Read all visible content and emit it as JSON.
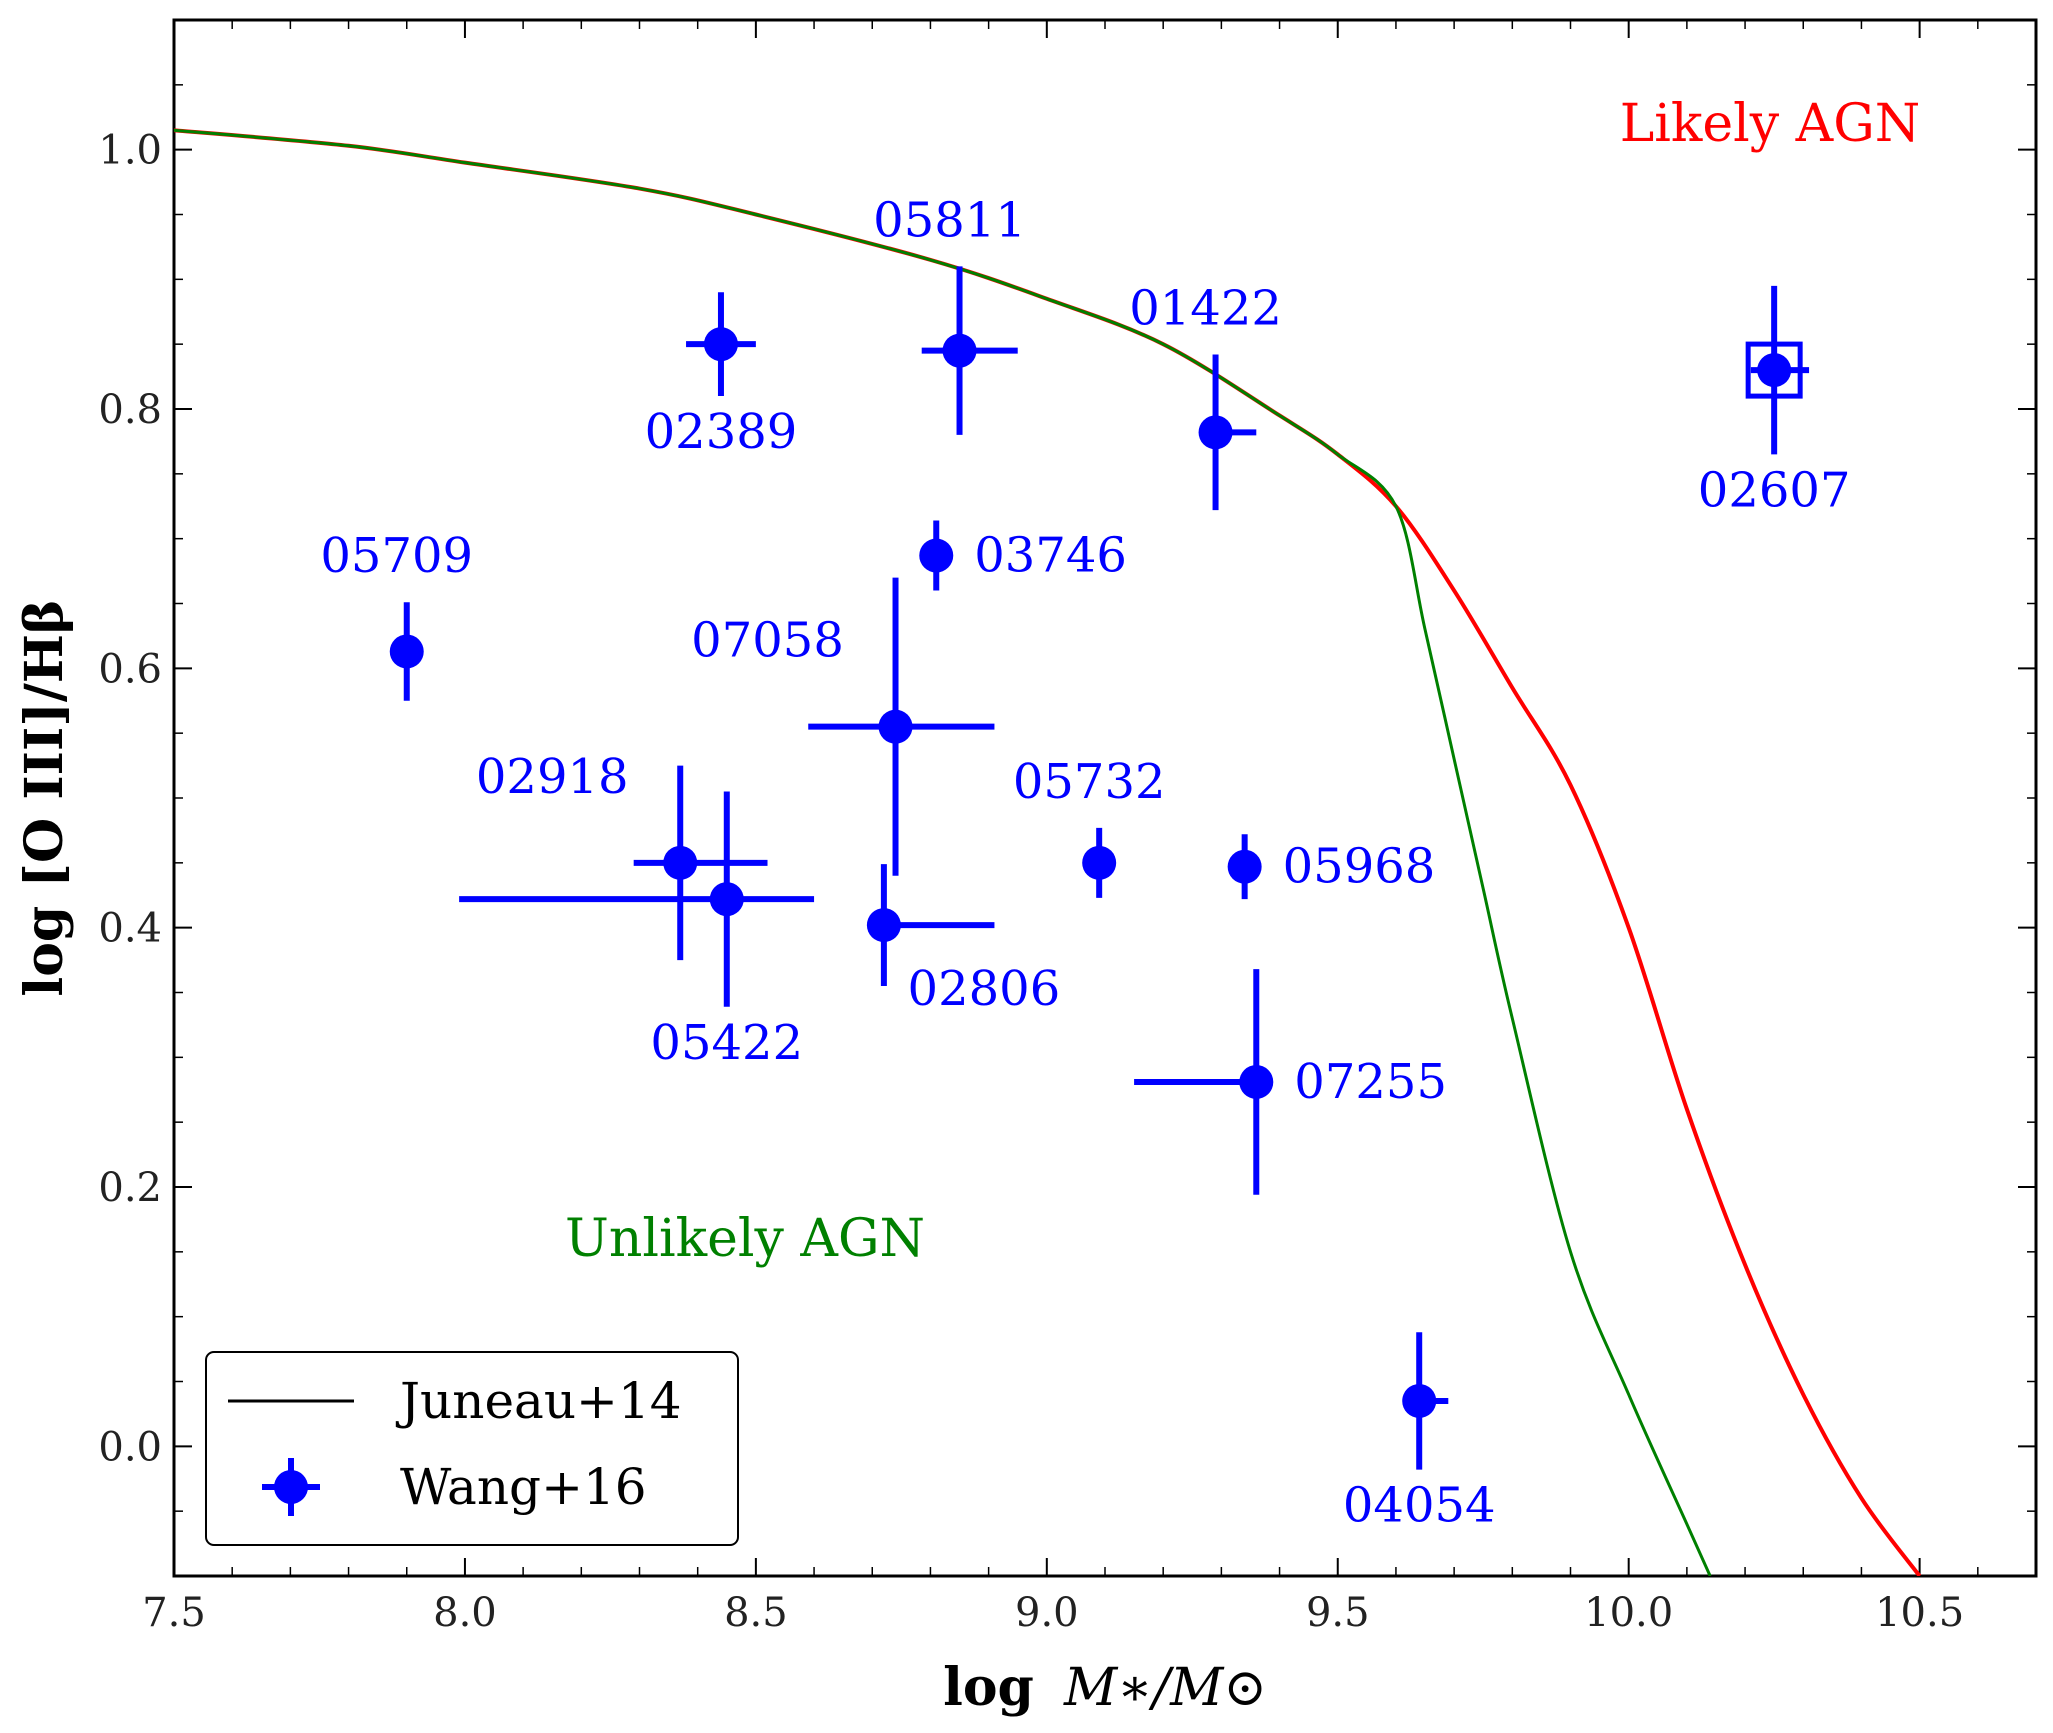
{
  "chart_data": {
    "type": "scatter",
    "xlabel_prefix": "log",
    "xlabel_var": "M∗/M⊙",
    "ylabel": "log [O III]/Hβ",
    "xlim": [
      7.5,
      10.7
    ],
    "ylim": [
      -0.1,
      1.1
    ],
    "xticks": [
      7.5,
      8.0,
      8.5,
      9.0,
      9.5,
      10.0,
      10.5
    ],
    "xtick_labels": [
      "7.5",
      "8.0",
      "8.5",
      "9.0",
      "9.5",
      "10.0",
      "10.5"
    ],
    "yticks": [
      0.0,
      0.2,
      0.4,
      0.6,
      0.8,
      1.0
    ],
    "ytick_labels": [
      "0.0",
      "0.2",
      "0.4",
      "0.6",
      "0.8",
      "1.0"
    ],
    "region_labels": {
      "agn": {
        "text": "Likely AGN",
        "color": "#ff0000"
      },
      "non_agn": {
        "text": "Unlikely AGN",
        "color": "#008000"
      }
    },
    "curves": {
      "name": "Juneau+14",
      "upper": {
        "color": "#ff0000",
        "x": [
          7.5,
          7.8,
          8.0,
          8.3,
          8.5,
          8.8,
          9.0,
          9.2,
          9.4,
          9.5,
          9.6,
          9.7,
          9.8,
          9.9,
          10.0,
          10.1,
          10.2,
          10.3,
          10.4,
          10.5
        ],
        "y": [
          1.015,
          1.003,
          0.99,
          0.97,
          0.95,
          0.915,
          0.885,
          0.85,
          0.795,
          0.765,
          0.725,
          0.66,
          0.585,
          0.51,
          0.4,
          0.26,
          0.14,
          0.04,
          -0.04,
          -0.1
        ]
      },
      "lower": {
        "color": "#008000",
        "x": [
          9.6,
          9.65,
          9.7,
          9.75,
          9.8,
          9.9,
          10.0,
          10.1,
          10.14
        ],
        "y": [
          0.725,
          0.63,
          0.53,
          0.43,
          0.33,
          0.15,
          0.04,
          -0.06,
          -0.1
        ]
      }
    },
    "series": [
      {
        "name": "Wang+16",
        "color": "#0000ff",
        "points": [
          {
            "id": "05709",
            "x": 7.9,
            "y": 0.613,
            "xerr": [
              0.0,
              0.0
            ],
            "yerr": [
              0.038,
              0.038
            ],
            "label_pos": "above"
          },
          {
            "id": "02389",
            "x": 8.44,
            "y": 0.85,
            "xerr": [
              0.06,
              0.06
            ],
            "yerr": [
              0.04,
              0.04
            ],
            "label_pos": "below"
          },
          {
            "id": "05811",
            "x": 8.85,
            "y": 0.845,
            "xerr": [
              0.065,
              0.1
            ],
            "yerr": [
              0.065,
              0.065
            ],
            "label_pos": "above"
          },
          {
            "id": "01422",
            "x": 9.29,
            "y": 0.782,
            "xerr": [
              0.0,
              0.07
            ],
            "yerr": [
              0.06,
              0.06
            ],
            "label_pos": "above"
          },
          {
            "id": "03746",
            "x": 8.81,
            "y": 0.687,
            "xerr": [
              0.0,
              0.0
            ],
            "yerr": [
              0.027,
              0.027
            ],
            "label_pos": "right"
          },
          {
            "id": "07058",
            "x": 8.74,
            "y": 0.555,
            "xerr": [
              0.15,
              0.17
            ],
            "yerr": [
              0.115,
              0.115
            ],
            "label_pos": "above-left"
          },
          {
            "id": "02918",
            "x": 8.37,
            "y": 0.45,
            "xerr": [
              0.08,
              0.15
            ],
            "yerr": [
              0.075,
              0.075
            ],
            "label_pos": "above-left"
          },
          {
            "id": "05422",
            "x": 8.45,
            "y": 0.422,
            "xerr": [
              0.46,
              0.15
            ],
            "yerr": [
              0.083,
              0.083
            ],
            "label_pos": "below"
          },
          {
            "id": "02806",
            "x": 8.72,
            "y": 0.402,
            "xerr": [
              0.0,
              0.19
            ],
            "yerr": [
              0.047,
              0.047
            ],
            "label_pos": "below-right"
          },
          {
            "id": "05732",
            "x": 9.09,
            "y": 0.45,
            "xerr": [
              0.0,
              0.0
            ],
            "yerr": [
              0.027,
              0.027
            ],
            "label_pos": "above"
          },
          {
            "id": "05968",
            "x": 9.34,
            "y": 0.447,
            "xerr": [
              0.0,
              0.0
            ],
            "yerr": [
              0.025,
              0.025
            ],
            "label_pos": "right"
          },
          {
            "id": "07255",
            "x": 9.36,
            "y": 0.281,
            "xerr": [
              0.21,
              0.0
            ],
            "yerr": [
              0.087,
              0.087
            ],
            "label_pos": "right"
          },
          {
            "id": "04054",
            "x": 9.64,
            "y": 0.035,
            "xerr": [
              0.0,
              0.05
            ],
            "yerr": [
              0.053,
              0.053
            ],
            "label_pos": "below"
          },
          {
            "id": "02607",
            "x": 10.25,
            "y": 0.83,
            "xerr": [
              0.04,
              0.06
            ],
            "yerr": [
              0.065,
              0.065
            ],
            "label_pos": "below",
            "boxed": true
          }
        ]
      }
    ],
    "legend": {
      "position": "bottom-left",
      "entries": [
        {
          "label": "Juneau+14",
          "marker": "line",
          "color": "#000000"
        },
        {
          "label": "Wang+16",
          "marker": "errorbar-point",
          "color": "#0000ff"
        }
      ]
    }
  }
}
